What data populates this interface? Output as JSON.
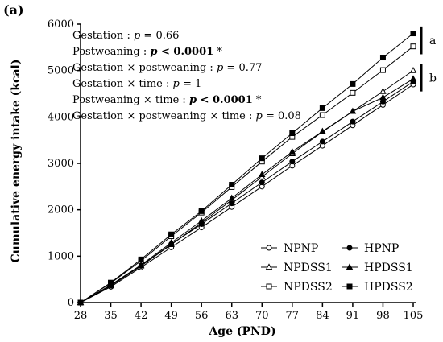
{
  "panel_label": "(a)",
  "chart_data": {
    "type": "line",
    "xlabel": "Age (PND)",
    "ylabel": "Cumulative energy intake (kcal)",
    "x": [
      28,
      35,
      42,
      49,
      56,
      63,
      70,
      77,
      84,
      91,
      98,
      105
    ],
    "x_ticks": [
      "28",
      "35",
      "42",
      "49",
      "56",
      "63",
      "70",
      "77",
      "84",
      "91",
      "98",
      "105"
    ],
    "ylim": [
      0,
      6000
    ],
    "y_ticks": [
      "0",
      "1000",
      "2000",
      "3000",
      "4000",
      "5000",
      "6000"
    ],
    "grid": false,
    "legend_position": "bottom-right",
    "series": [
      {
        "name": "NPNP",
        "marker": "circle-open",
        "values": [
          0,
          340,
          760,
          1190,
          1620,
          2060,
          2500,
          2950,
          3380,
          3820,
          4260,
          4700
        ]
      },
      {
        "name": "NPDSS1",
        "marker": "triangle-open",
        "values": [
          0,
          360,
          790,
          1250,
          1720,
          2210,
          2710,
          3210,
          3680,
          4120,
          4550,
          5000
        ]
      },
      {
        "name": "NPDSS2",
        "marker": "square-open",
        "values": [
          0,
          420,
          900,
          1430,
          1940,
          2490,
          3040,
          3570,
          4040,
          4520,
          5010,
          5520
        ]
      },
      {
        "name": "HPNP",
        "marker": "circle-filled",
        "values": [
          0,
          370,
          790,
          1260,
          1690,
          2140,
          2590,
          3040,
          3470,
          3900,
          4330,
          4760
        ]
      },
      {
        "name": "HPDSS1",
        "marker": "triangle-filled",
        "values": [
          0,
          380,
          810,
          1290,
          1760,
          2250,
          2760,
          3250,
          3690,
          4120,
          4420,
          4820
        ]
      },
      {
        "name": "HPDSS2",
        "marker": "square-filled",
        "values": [
          0,
          430,
          930,
          1470,
          1970,
          2540,
          3110,
          3650,
          4190,
          4710,
          5280,
          5800
        ]
      }
    ],
    "group_labels": [
      "a",
      "b"
    ]
  },
  "stats": [
    {
      "label": "Gestation : ",
      "p_text": "p",
      "rest": " = 0.66",
      "bold": false
    },
    {
      "label": "Postweaning :  ",
      "p_text": "p",
      "rest": " < 0.0001",
      "suffix": " *",
      "bold": true
    },
    {
      "label": "Gestation × postweaning : ",
      "p_text": "p",
      "rest": " = 0.77",
      "bold": false
    },
    {
      "label": "Gestation × time :  ",
      "p_text": "p",
      "rest": " = 1",
      "bold": false
    },
    {
      "label": "Postweaning × time : ",
      "p_text": "p",
      "rest": " < 0.0001",
      "suffix": " *",
      "bold": true
    },
    {
      "label": "Gestation × postweaning × time :  ",
      "p_text": "p",
      "rest": " = 0.08",
      "bold": false
    }
  ]
}
